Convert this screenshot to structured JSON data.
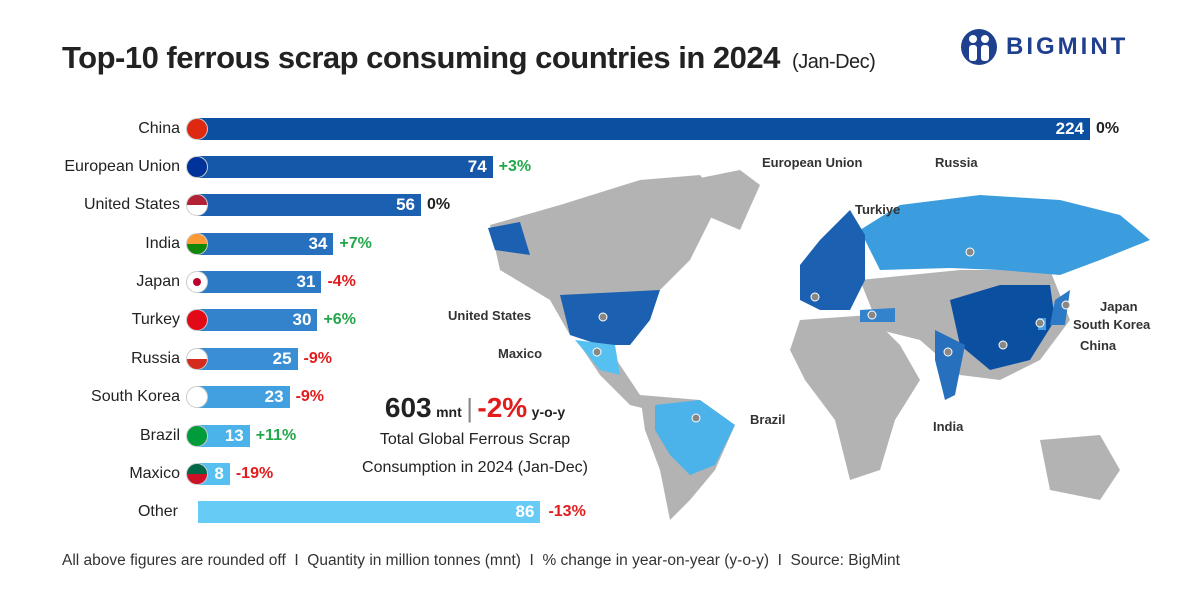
{
  "title": "Top-10 ferrous scrap consuming countries in 2024",
  "title_suffix": "(Jan-Dec)",
  "logo": "BIGMINT",
  "total": {
    "value": "603",
    "unit": "mnt",
    "change": "-2%",
    "change_unit": "y-o-y",
    "desc1": "Total Global Ferrous Scrap",
    "desc2": "Consumption in 2024 (Jan-Dec)"
  },
  "footer": "All above figures are rounded off  I  Quantity in million tonnes (mnt)  I  % change in year-on-year (y-o-y)  I  Source: BigMint",
  "colors": {
    "positive": "#22a84a",
    "negative": "#e21c1c",
    "neutral": "#222222"
  },
  "chart_data": {
    "type": "bar",
    "orientation": "horizontal",
    "categories": [
      "China",
      "European Union",
      "United States",
      "India",
      "Japan",
      "Turkey",
      "Russia",
      "South Korea",
      "Brazil",
      "Maxico",
      "Other"
    ],
    "values": [
      224,
      74,
      56,
      34,
      31,
      30,
      25,
      23,
      13,
      8,
      86
    ],
    "changes": [
      "0%",
      "+3%",
      "0%",
      "+7%",
      "-4%",
      "+6%",
      "-9%",
      "-9%",
      "+11%",
      "-19%",
      "-13%"
    ],
    "bar_colors": [
      "#0b4fa0",
      "#1557a8",
      "#1b60b1",
      "#2670bd",
      "#2c7ac6",
      "#3283cc",
      "#3a8fd4",
      "#42a0e0",
      "#4cb2ea",
      "#56c0f1",
      "#66ccf6"
    ],
    "unit": "mnt"
  },
  "map_labels": [
    "European Union",
    "Russia",
    "Turkiye",
    "United States",
    "Maxico",
    "Brazil",
    "Japan",
    "South Korea",
    "China",
    "India"
  ]
}
